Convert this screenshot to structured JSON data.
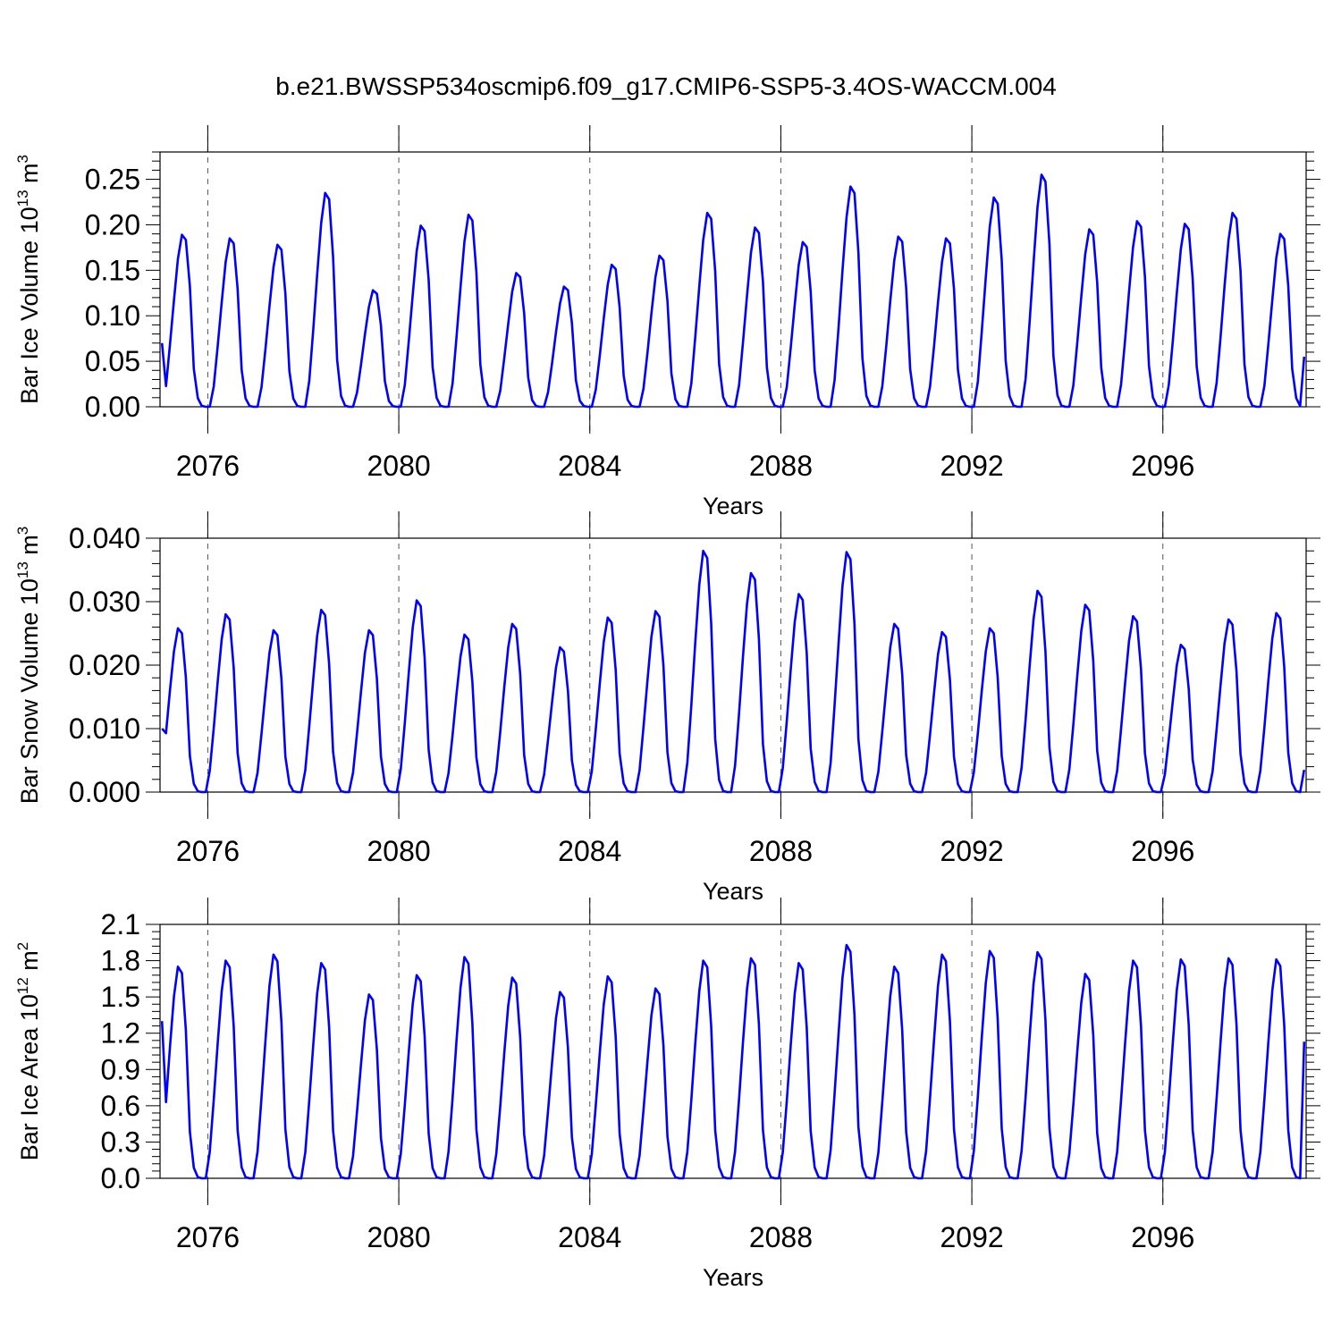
{
  "title": "b.e21.BWSSP534oscmip6.f09_g17.CMIP6-SSP5-3.4OS-WACCM.004",
  "series_color": "#0000ff",
  "chart_data": [
    {
      "type": "line",
      "ylabel_parts": {
        "base": "Bar Ice Volume 10",
        "exp": "13",
        "unit": " m",
        "unit_exp": "3"
      },
      "xlabel": "Years",
      "xlim": [
        2075,
        2099
      ],
      "ylim": [
        0,
        0.28
      ],
      "xticks": [
        2076,
        2080,
        2084,
        2088,
        2092,
        2096
      ],
      "yticks": [
        "0.00",
        "0.05",
        "0.10",
        "0.15",
        "0.20",
        "0.25"
      ],
      "grid_x": true,
      "series_name": "Bar Ice Volume",
      "peaks": [
        0.189,
        0.185,
        0.178,
        0.235,
        0.128,
        0.199,
        0.211,
        0.147,
        0.132,
        0.156,
        0.166,
        0.213,
        0.197,
        0.181,
        0.242,
        0.187,
        0.185,
        0.23,
        0.255,
        0.195,
        0.204,
        0.201,
        0.213,
        0.19
      ],
      "peak_month": 5,
      "start_value": 0.07,
      "end_value": 0.055
    },
    {
      "type": "line",
      "ylabel_parts": {
        "base": "Bar Snow Volume 10",
        "exp": "13",
        "unit": " m",
        "unit_exp": "3"
      },
      "xlabel": "Years",
      "xlim": [
        2075,
        2099
      ],
      "ylim": [
        0,
        0.04
      ],
      "xticks": [
        2076,
        2080,
        2084,
        2088,
        2092,
        2096
      ],
      "yticks": [
        "0.000",
        "0.010",
        "0.020",
        "0.030",
        "0.040"
      ],
      "grid_x": true,
      "series_name": "Bar Snow Volume",
      "peaks": [
        0.0258,
        0.028,
        0.0255,
        0.0287,
        0.0255,
        0.0302,
        0.0248,
        0.0265,
        0.0228,
        0.0275,
        0.0285,
        0.038,
        0.0345,
        0.0312,
        0.0378,
        0.0265,
        0.0252,
        0.0258,
        0.0317,
        0.0295,
        0.0277,
        0.0232,
        0.0272,
        0.0282
      ],
      "peak_month": 4,
      "start_value": 0.01,
      "end_value": 0.0035
    },
    {
      "type": "line",
      "ylabel_parts": {
        "base": "Bar Ice Area 10",
        "exp": "12",
        "unit": " m",
        "unit_exp": "2"
      },
      "xlabel": "Years",
      "xlim": [
        2075,
        2099
      ],
      "ylim": [
        0,
        2.1
      ],
      "xticks": [
        2076,
        2080,
        2084,
        2088,
        2092,
        2096
      ],
      "yticks": [
        "0.0",
        "0.3",
        "0.6",
        "0.9",
        "1.2",
        "1.5",
        "1.8",
        "2.1"
      ],
      "grid_x": true,
      "series_name": "Bar Ice Area",
      "peaks": [
        1.75,
        1.8,
        1.85,
        1.78,
        1.52,
        1.68,
        1.83,
        1.66,
        1.54,
        1.67,
        1.57,
        1.8,
        1.82,
        1.78,
        1.93,
        1.75,
        1.85,
        1.88,
        1.87,
        1.69,
        1.8,
        1.81,
        1.82,
        1.81
      ],
      "peak_month": 4,
      "start_value": 1.3,
      "end_value": 1.13
    }
  ]
}
